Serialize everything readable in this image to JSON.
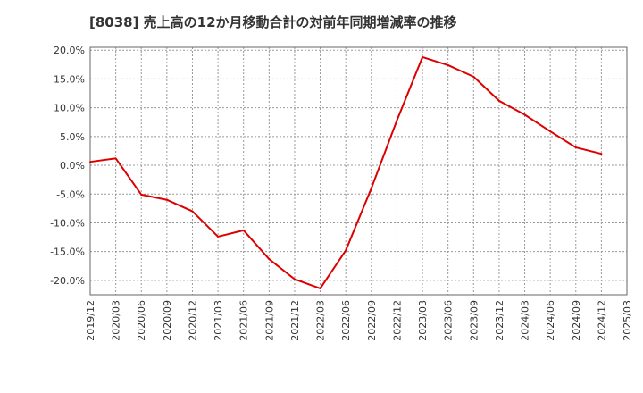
{
  "chart_data": {
    "type": "line",
    "title": "[8038]  売上高の12か月移動合計の対前年同期増減率の推移",
    "xlabel": "",
    "ylabel": "",
    "x": [
      "2019/12",
      "2020/03",
      "2020/06",
      "2020/09",
      "2020/12",
      "2021/03",
      "2021/06",
      "2021/09",
      "2021/12",
      "2022/03",
      "2022/06",
      "2022/09",
      "2022/12",
      "2023/03",
      "2023/06",
      "2023/09",
      "2023/12",
      "2024/03",
      "2024/06",
      "2024/09",
      "2024/12",
      "2025/03"
    ],
    "series": [
      {
        "name": "増減率",
        "color": "#dd0000",
        "values": [
          0.6,
          1.2,
          -5.1,
          -6.0,
          -8.0,
          -12.4,
          -11.3,
          -16.3,
          -19.8,
          -21.4,
          -14.8,
          -4.0,
          7.8,
          18.8,
          17.4,
          15.4,
          11.2,
          8.8,
          5.9,
          3.1,
          2.0,
          null
        ]
      }
    ],
    "yticks": [
      20,
      15,
      10,
      5,
      0,
      -5,
      -10,
      -15,
      -20
    ],
    "ytick_labels": [
      "20.0%",
      "15.0%",
      "10.0%",
      "5.0%",
      "0.0%",
      "-5.0%",
      "-10.0%",
      "-15.0%",
      "-20.0%"
    ],
    "ylim": [
      -22.5,
      20.5
    ],
    "grid": true
  }
}
